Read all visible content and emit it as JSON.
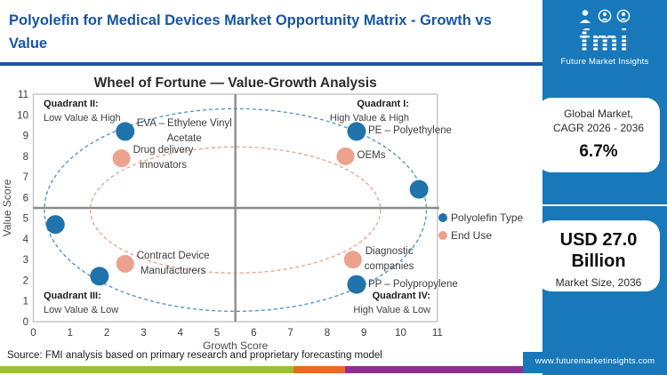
{
  "header": {
    "title": "Polyolefin for Medical Devices Market Opportunity Matrix - Growth vs Value"
  },
  "logo": {
    "brand": "fmi",
    "caption": "Future Market Insights"
  },
  "sidebar": {
    "card1": {
      "line1": "Global Market,",
      "line2": "CAGR 2026 - 2036",
      "value": "6.7%"
    },
    "card2": {
      "value_line1": "USD 27.0",
      "value_line2": "Billion",
      "label": "Market Size, 2036"
    },
    "website": "www.futuremarketinsights.com"
  },
  "source": "Source: FMI analysis based on primary research and proprietary forecasting model",
  "colors": {
    "brand_blue": "#1656a4",
    "sidebar_blue": "#1878ba",
    "polyolefin_dot": "#2173ab",
    "end_use_dot": "#eca28e",
    "polyolefin_ring": "#4a90c8",
    "end_use_ring": "#e9a18c",
    "divider_gray": "#8c8c8c",
    "plot_border": "#c4c4c4",
    "footer_stripe": [
      "#9bbf3b",
      "#ea6a28",
      "#8e2f8f"
    ]
  },
  "chart_data": {
    "type": "scatter",
    "title": "Wheel of Fortune — Value-Growth Analysis",
    "xlabel": "Growth Score",
    "ylabel": "Value Score",
    "xlim": [
      0,
      11
    ],
    "ylim": [
      0,
      11
    ],
    "xticks": [
      0,
      1,
      2,
      3,
      4,
      5,
      6,
      7,
      8,
      9,
      10,
      11
    ],
    "yticks": [
      0,
      1,
      2,
      3,
      4,
      5,
      6,
      7,
      8,
      9,
      10,
      11
    ],
    "grid": false,
    "quadrant_divider": {
      "x": 5.5,
      "y": 5.5
    },
    "quadrants": [
      {
        "label": "Quadrant I:",
        "sublabel": "High Value & High",
        "position": "top-right"
      },
      {
        "label": "Quadrant II:",
        "sublabel": "Low Value & High",
        "position": "top-left"
      },
      {
        "label": "Quadrant III:",
        "sublabel": "Low Value & Low",
        "position": "bottom-left"
      },
      {
        "label": "Quadrant IV:",
        "sublabel": "High Value & Low",
        "position": "bottom-right"
      }
    ],
    "legend": {
      "position": "right",
      "entries": [
        "Polyolefin Type",
        "End Use"
      ]
    },
    "series": [
      {
        "name": "Polyolefin Type",
        "color": "#2173ab",
        "points": [
          {
            "x": 2.5,
            "y": 9.2,
            "label": "EVA – Ethylene Vinyl Acetate",
            "label_lines": [
              "EVA – Ethylene Vinyl",
              "Acetate"
            ]
          },
          {
            "x": 8.8,
            "y": 9.2,
            "label": "PE – Polyethylene",
            "label_lines": [
              "PE – Polyethylene"
            ]
          },
          {
            "x": 10.5,
            "y": 6.4,
            "label": "",
            "label_lines": []
          },
          {
            "x": 0.6,
            "y": 4.7,
            "label": "",
            "label_lines": []
          },
          {
            "x": 1.8,
            "y": 2.2,
            "label": "",
            "label_lines": []
          },
          {
            "x": 8.8,
            "y": 1.8,
            "label": "PP – Polypropylene",
            "label_lines": [
              "PP – Polypropylene"
            ]
          }
        ]
      },
      {
        "name": "End Use",
        "color": "#eca28e",
        "points": [
          {
            "x": 2.4,
            "y": 7.9,
            "label": "Drug delivery innovators",
            "label_lines": [
              "Drug delivery",
              "innovators"
            ]
          },
          {
            "x": 8.5,
            "y": 8.0,
            "label": "OEMs",
            "label_lines": [
              "OEMs"
            ]
          },
          {
            "x": 2.5,
            "y": 2.8,
            "label": "Contract Device Manufacturers",
            "label_lines": [
              "Contract Device",
              "Manufacturers"
            ]
          },
          {
            "x": 8.7,
            "y": 3.0,
            "label": "Diagnostic companies",
            "label_lines": [
              "Diagnostic",
              "companies"
            ]
          }
        ]
      }
    ],
    "ellipses": [
      {
        "series": "Polyolefin Type",
        "cx": 5.5,
        "cy": 5.4,
        "rx": 5.2,
        "ry": 4.9
      },
      {
        "series": "End Use",
        "cx": 5.5,
        "cy": 5.4,
        "rx": 3.95,
        "ry": 3.05
      }
    ]
  }
}
